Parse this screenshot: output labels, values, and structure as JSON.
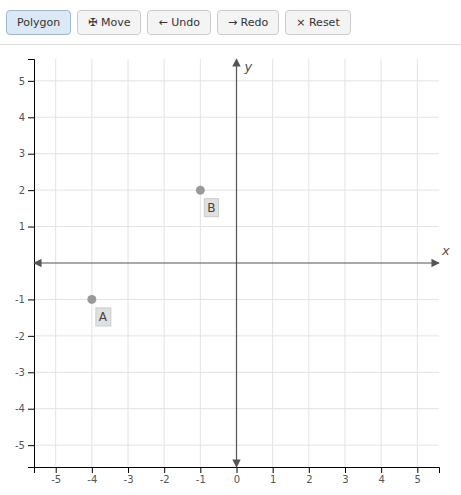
{
  "chart_data": {
    "type": "scatter",
    "x": [
      -4,
      -1
    ],
    "values": [
      -1,
      2
    ],
    "labels": [
      "A",
      "B"
    ],
    "color": "#999999",
    "x_label": "x",
    "y_label": "y",
    "xlim": [
      -5.6,
      5.6
    ],
    "ylim": [
      -5.6,
      5.6
    ],
    "xticks": [
      -5,
      -4,
      -3,
      -2,
      -1,
      0,
      1,
      2,
      3,
      4,
      5
    ],
    "yticks": [
      -5,
      -4,
      -3,
      -2,
      -1,
      1,
      2,
      3,
      4,
      5
    ],
    "grid": true,
    "toolbar": [
      "Polygon",
      "✠ Move",
      "← Undo",
      "→ Redo",
      "× Reset"
    ]
  }
}
